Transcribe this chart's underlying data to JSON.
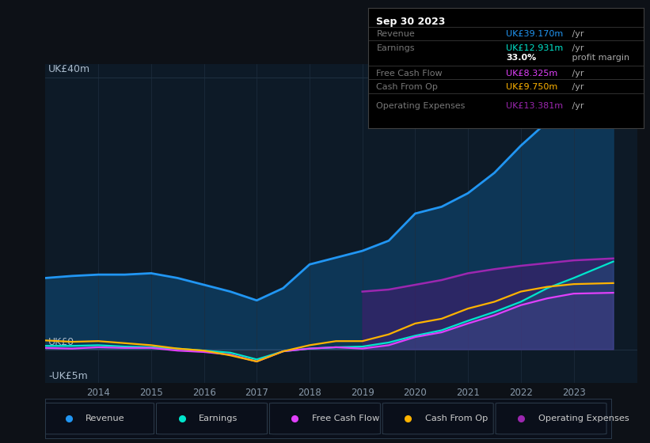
{
  "bg_color": "#0d1117",
  "plot_bg_color": "#0d1a27",
  "grid_color": "#1e2e3e",
  "ylabel_top": "UK£40m",
  "ylabel_zero": "UK£0",
  "ylabel_neg": "-UK£5m",
  "years": [
    2013.0,
    2013.5,
    2014.0,
    2014.5,
    2015.0,
    2015.5,
    2016.0,
    2016.5,
    2017.0,
    2017.5,
    2018.0,
    2018.5,
    2019.0,
    2019.5,
    2020.0,
    2020.5,
    2021.0,
    2021.5,
    2022.0,
    2022.5,
    2023.0,
    2023.75
  ],
  "revenue": [
    10.5,
    10.8,
    11.0,
    11.0,
    11.2,
    10.5,
    9.5,
    8.5,
    7.2,
    9.0,
    12.5,
    13.5,
    14.5,
    16.0,
    20.0,
    21.0,
    23.0,
    26.0,
    30.0,
    33.5,
    37.5,
    39.17
  ],
  "earnings": [
    0.5,
    0.5,
    0.6,
    0.4,
    0.3,
    0.1,
    -0.2,
    -0.5,
    -1.5,
    -0.3,
    0.1,
    0.3,
    0.4,
    1.0,
    2.0,
    2.8,
    4.2,
    5.5,
    7.0,
    9.0,
    10.5,
    12.93
  ],
  "free_cash_flow": [
    0.2,
    0.1,
    0.3,
    0.2,
    0.2,
    -0.2,
    -0.4,
    -0.8,
    -1.8,
    -0.3,
    0.1,
    0.3,
    0.1,
    0.6,
    1.8,
    2.5,
    3.8,
    5.0,
    6.5,
    7.5,
    8.2,
    8.325
  ],
  "cash_from_op": [
    1.3,
    1.1,
    1.2,
    0.9,
    0.6,
    0.1,
    -0.2,
    -0.9,
    -1.8,
    -0.3,
    0.6,
    1.2,
    1.2,
    2.2,
    3.8,
    4.5,
    6.0,
    7.0,
    8.5,
    9.2,
    9.6,
    9.75
  ],
  "op_expenses": [
    null,
    null,
    null,
    null,
    null,
    null,
    null,
    null,
    null,
    null,
    null,
    null,
    8.5,
    8.8,
    9.5,
    10.2,
    11.2,
    11.8,
    12.3,
    12.7,
    13.1,
    13.381
  ],
  "revenue_color": "#2196f3",
  "earnings_color": "#00e5cc",
  "free_cash_flow_color": "#e040fb",
  "cash_from_op_color": "#ffb300",
  "op_expenses_color": "#9c27b0",
  "revenue_fill_color": "#0d3a5c",
  "op_expenses_fill_color": "#3d1f6e",
  "ylim": [
    -5,
    42
  ],
  "xlim_start": 2013.0,
  "xlim_end": 2024.2,
  "xticks": [
    2014,
    2015,
    2016,
    2017,
    2018,
    2019,
    2020,
    2021,
    2022,
    2023
  ],
  "infobox": {
    "title": "Sep 30 2023",
    "rows": [
      {
        "label": "Revenue",
        "value": "UK£39.170m",
        "unit": " /yr",
        "color": "#2196f3",
        "sep_above": true
      },
      {
        "label": "Earnings",
        "value": "UK£12.931m",
        "unit": " /yr",
        "color": "#00e5cc",
        "sep_above": true
      },
      {
        "label": "",
        "value": "33.0%",
        "unit": " profit margin",
        "color": "#ffffff",
        "bold": true,
        "sep_above": false
      },
      {
        "label": "Free Cash Flow",
        "value": "UK£8.325m",
        "unit": " /yr",
        "color": "#e040fb",
        "sep_above": true
      },
      {
        "label": "Cash From Op",
        "value": "UK£9.750m",
        "unit": " /yr",
        "color": "#ffb300",
        "sep_above": true
      },
      {
        "label": "Operating Expenses",
        "value": "UK£13.381m",
        "unit": " /yr",
        "color": "#9c27b0",
        "sep_above": true
      }
    ]
  },
  "legend_items": [
    {
      "label": "Revenue",
      "color": "#2196f3"
    },
    {
      "label": "Earnings",
      "color": "#00e5cc"
    },
    {
      "label": "Free Cash Flow",
      "color": "#e040fb"
    },
    {
      "label": "Cash From Op",
      "color": "#ffb300"
    },
    {
      "label": "Operating Expenses",
      "color": "#9c27b0"
    }
  ]
}
